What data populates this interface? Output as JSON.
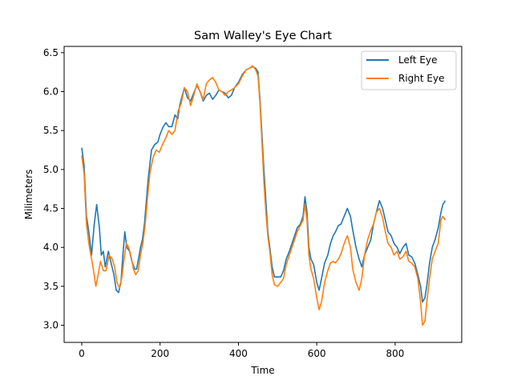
{
  "chart_data": {
    "type": "line",
    "title": "Sam Walley's Eye Chart",
    "xlabel": "Time",
    "ylabel": "Milimeters",
    "xlim": [
      -45,
      970
    ],
    "ylim": [
      2.78,
      6.58
    ],
    "xticks": [
      0,
      200,
      400,
      600,
      800
    ],
    "xtick_labels": [
      "0",
      "200",
      "400",
      "600",
      "800"
    ],
    "yticks": [
      3.0,
      3.5,
      4.0,
      4.5,
      5.0,
      5.5,
      6.0,
      6.5
    ],
    "ytick_labels": [
      "3.0",
      "3.5",
      "4.0",
      "4.5",
      "5.0",
      "5.5",
      "6.0",
      "6.5"
    ],
    "grid": false,
    "legend_position": "top-right",
    "series": [
      {
        "name": "Left Eye",
        "color": "#1f77b4",
        "points": [
          [
            0,
            5.28
          ],
          [
            6,
            5.05
          ],
          [
            12,
            4.4
          ],
          [
            18,
            4.2
          ],
          [
            25,
            3.9
          ],
          [
            32,
            4.3
          ],
          [
            38,
            4.55
          ],
          [
            45,
            4.25
          ],
          [
            50,
            3.9
          ],
          [
            55,
            3.95
          ],
          [
            60,
            3.75
          ],
          [
            68,
            3.95
          ],
          [
            75,
            3.8
          ],
          [
            82,
            3.65
          ],
          [
            88,
            3.45
          ],
          [
            94,
            3.42
          ],
          [
            100,
            3.55
          ],
          [
            105,
            3.9
          ],
          [
            110,
            4.2
          ],
          [
            115,
            4.0
          ],
          [
            122,
            3.95
          ],
          [
            128,
            3.82
          ],
          [
            135,
            3.72
          ],
          [
            140,
            3.72
          ],
          [
            145,
            3.85
          ],
          [
            150,
            4.0
          ],
          [
            155,
            4.1
          ],
          [
            160,
            4.3
          ],
          [
            165,
            4.6
          ],
          [
            170,
            4.9
          ],
          [
            178,
            5.25
          ],
          [
            186,
            5.32
          ],
          [
            194,
            5.35
          ],
          [
            200,
            5.45
          ],
          [
            208,
            5.55
          ],
          [
            215,
            5.6
          ],
          [
            222,
            5.55
          ],
          [
            230,
            5.55
          ],
          [
            238,
            5.7
          ],
          [
            245,
            5.65
          ],
          [
            250,
            5.82
          ],
          [
            255,
            5.92
          ],
          [
            262,
            6.05
          ],
          [
            270,
            5.92
          ],
          [
            278,
            5.88
          ],
          [
            286,
            5.98
          ],
          [
            294,
            6.08
          ],
          [
            302,
            6.0
          ],
          [
            310,
            5.88
          ],
          [
            318,
            5.95
          ],
          [
            326,
            5.98
          ],
          [
            334,
            5.9
          ],
          [
            342,
            5.95
          ],
          [
            350,
            6.02
          ],
          [
            358,
            6.0
          ],
          [
            366,
            5.98
          ],
          [
            374,
            5.92
          ],
          [
            382,
            5.95
          ],
          [
            390,
            6.05
          ],
          [
            400,
            6.12
          ],
          [
            410,
            6.22
          ],
          [
            420,
            6.28
          ],
          [
            428,
            6.3
          ],
          [
            436,
            6.32
          ],
          [
            444,
            6.3
          ],
          [
            450,
            6.25
          ],
          [
            455,
            5.9
          ],
          [
            460,
            5.45
          ],
          [
            465,
            5.0
          ],
          [
            470,
            4.6
          ],
          [
            475,
            4.2
          ],
          [
            480,
            4.0
          ],
          [
            486,
            3.75
          ],
          [
            492,
            3.62
          ],
          [
            500,
            3.62
          ],
          [
            508,
            3.62
          ],
          [
            515,
            3.7
          ],
          [
            522,
            3.85
          ],
          [
            530,
            3.95
          ],
          [
            540,
            4.1
          ],
          [
            550,
            4.25
          ],
          [
            558,
            4.3
          ],
          [
            565,
            4.4
          ],
          [
            570,
            4.65
          ],
          [
            575,
            4.45
          ],
          [
            580,
            4.0
          ],
          [
            585,
            3.85
          ],
          [
            592,
            3.78
          ],
          [
            600,
            3.55
          ],
          [
            606,
            3.45
          ],
          [
            612,
            3.6
          ],
          [
            620,
            3.8
          ],
          [
            628,
            3.9
          ],
          [
            635,
            4.05
          ],
          [
            642,
            4.15
          ],
          [
            648,
            4.2
          ],
          [
            655,
            4.28
          ],
          [
            662,
            4.3
          ],
          [
            670,
            4.4
          ],
          [
            678,
            4.5
          ],
          [
            686,
            4.4
          ],
          [
            692,
            4.22
          ],
          [
            700,
            4.0
          ],
          [
            708,
            3.85
          ],
          [
            715,
            3.75
          ],
          [
            722,
            3.9
          ],
          [
            730,
            4.0
          ],
          [
            738,
            4.1
          ],
          [
            745,
            4.3
          ],
          [
            752,
            4.45
          ],
          [
            760,
            4.6
          ],
          [
            768,
            4.5
          ],
          [
            775,
            4.35
          ],
          [
            782,
            4.2
          ],
          [
            790,
            4.15
          ],
          [
            797,
            4.05
          ],
          [
            805,
            4.0
          ],
          [
            812,
            3.92
          ],
          [
            820,
            4.0
          ],
          [
            828,
            4.05
          ],
          [
            835,
            3.9
          ],
          [
            842,
            3.88
          ],
          [
            850,
            3.8
          ],
          [
            858,
            3.65
          ],
          [
            865,
            3.5
          ],
          [
            870,
            3.3
          ],
          [
            876,
            3.35
          ],
          [
            882,
            3.55
          ],
          [
            888,
            3.8
          ],
          [
            895,
            4.0
          ],
          [
            902,
            4.1
          ],
          [
            910,
            4.25
          ],
          [
            917,
            4.45
          ],
          [
            922,
            4.55
          ],
          [
            928,
            4.6
          ]
        ]
      },
      {
        "name": "Right Eye",
        "color": "#ff7f0e",
        "points": [
          [
            0,
            5.18
          ],
          [
            6,
            4.95
          ],
          [
            12,
            4.3
          ],
          [
            18,
            4.05
          ],
          [
            25,
            3.85
          ],
          [
            30,
            3.7
          ],
          [
            36,
            3.5
          ],
          [
            42,
            3.65
          ],
          [
            48,
            3.82
          ],
          [
            55,
            3.7
          ],
          [
            62,
            3.7
          ],
          [
            70,
            3.9
          ],
          [
            78,
            3.85
          ],
          [
            84,
            3.75
          ],
          [
            90,
            3.55
          ],
          [
            96,
            3.48
          ],
          [
            102,
            3.6
          ],
          [
            108,
            3.85
          ],
          [
            114,
            4.05
          ],
          [
            120,
            4.0
          ],
          [
            126,
            3.88
          ],
          [
            132,
            3.72
          ],
          [
            138,
            3.65
          ],
          [
            144,
            3.7
          ],
          [
            150,
            3.9
          ],
          [
            156,
            4.05
          ],
          [
            162,
            4.3
          ],
          [
            168,
            4.65
          ],
          [
            174,
            4.95
          ],
          [
            182,
            5.15
          ],
          [
            190,
            5.25
          ],
          [
            198,
            5.22
          ],
          [
            206,
            5.32
          ],
          [
            214,
            5.4
          ],
          [
            222,
            5.5
          ],
          [
            230,
            5.45
          ],
          [
            238,
            5.5
          ],
          [
            246,
            5.75
          ],
          [
            254,
            5.85
          ],
          [
            262,
            6.05
          ],
          [
            270,
            6.0
          ],
          [
            278,
            5.82
          ],
          [
            286,
            5.95
          ],
          [
            294,
            6.1
          ],
          [
            302,
            6.0
          ],
          [
            310,
            5.9
          ],
          [
            318,
            6.1
          ],
          [
            326,
            6.15
          ],
          [
            334,
            6.18
          ],
          [
            342,
            6.12
          ],
          [
            350,
            6.02
          ],
          [
            358,
            6.0
          ],
          [
            366,
            5.95
          ],
          [
            374,
            6.0
          ],
          [
            382,
            6.02
          ],
          [
            390,
            6.05
          ],
          [
            400,
            6.1
          ],
          [
            410,
            6.2
          ],
          [
            420,
            6.28
          ],
          [
            428,
            6.3
          ],
          [
            436,
            6.33
          ],
          [
            444,
            6.28
          ],
          [
            450,
            6.2
          ],
          [
            455,
            5.85
          ],
          [
            460,
            5.35
          ],
          [
            465,
            4.85
          ],
          [
            470,
            4.45
          ],
          [
            475,
            4.15
          ],
          [
            480,
            3.95
          ],
          [
            486,
            3.65
          ],
          [
            492,
            3.52
          ],
          [
            500,
            3.5
          ],
          [
            508,
            3.55
          ],
          [
            515,
            3.6
          ],
          [
            522,
            3.78
          ],
          [
            530,
            3.9
          ],
          [
            540,
            4.05
          ],
          [
            550,
            4.2
          ],
          [
            558,
            4.28
          ],
          [
            565,
            4.35
          ],
          [
            570,
            4.55
          ],
          [
            575,
            4.35
          ],
          [
            580,
            3.9
          ],
          [
            585,
            3.72
          ],
          [
            592,
            3.6
          ],
          [
            600,
            3.35
          ],
          [
            606,
            3.2
          ],
          [
            612,
            3.3
          ],
          [
            620,
            3.55
          ],
          [
            628,
            3.7
          ],
          [
            635,
            3.8
          ],
          [
            642,
            3.82
          ],
          [
            648,
            3.8
          ],
          [
            655,
            3.85
          ],
          [
            662,
            3.92
          ],
          [
            670,
            4.05
          ],
          [
            678,
            4.15
          ],
          [
            686,
            4.0
          ],
          [
            692,
            3.72
          ],
          [
            700,
            3.55
          ],
          [
            708,
            3.45
          ],
          [
            715,
            3.6
          ],
          [
            722,
            3.9
          ],
          [
            730,
            4.1
          ],
          [
            738,
            4.22
          ],
          [
            745,
            4.3
          ],
          [
            752,
            4.45
          ],
          [
            760,
            4.5
          ],
          [
            768,
            4.38
          ],
          [
            775,
            4.2
          ],
          [
            782,
            4.05
          ],
          [
            790,
            4.0
          ],
          [
            797,
            3.9
          ],
          [
            805,
            3.95
          ],
          [
            812,
            3.85
          ],
          [
            820,
            3.88
          ],
          [
            828,
            3.95
          ],
          [
            835,
            3.82
          ],
          [
            842,
            3.8
          ],
          [
            850,
            3.75
          ],
          [
            858,
            3.6
          ],
          [
            865,
            3.3
          ],
          [
            870,
            3.0
          ],
          [
            876,
            3.05
          ],
          [
            882,
            3.35
          ],
          [
            888,
            3.6
          ],
          [
            895,
            3.85
          ],
          [
            902,
            3.95
          ],
          [
            910,
            4.05
          ],
          [
            917,
            4.35
          ],
          [
            922,
            4.4
          ],
          [
            928,
            4.35
          ]
        ]
      }
    ]
  }
}
